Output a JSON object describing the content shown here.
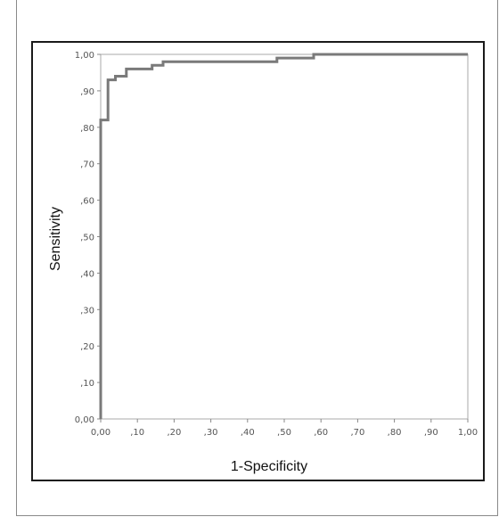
{
  "chart_data": {
    "type": "line",
    "title": "",
    "xlabel": "1-Specificity",
    "ylabel": "Sensitivity",
    "xlim": [
      0,
      1
    ],
    "ylim": [
      0,
      1
    ],
    "grid": false,
    "x_ticks": [
      "0,00",
      ",10",
      ",20",
      ",30",
      ",40",
      ",50",
      ",60",
      ",70",
      ",80",
      ",90",
      "1,00"
    ],
    "y_ticks": [
      "0,00",
      ",10",
      ",20",
      ",30",
      ",40",
      ",50",
      ",60",
      ",70",
      ",80",
      ",90",
      "1,00"
    ],
    "series": [
      {
        "color": "#7a7a7a",
        "x": [
          0.0,
          0.0,
          0.02,
          0.02,
          0.04,
          0.04,
          0.07,
          0.07,
          0.14,
          0.14,
          0.17,
          0.17,
          0.48,
          0.48,
          0.58,
          0.58,
          1.0
        ],
        "y": [
          0.0,
          0.82,
          0.82,
          0.93,
          0.93,
          0.94,
          0.94,
          0.96,
          0.96,
          0.97,
          0.97,
          0.98,
          0.98,
          0.99,
          0.99,
          1.0,
          1.0
        ]
      }
    ]
  }
}
